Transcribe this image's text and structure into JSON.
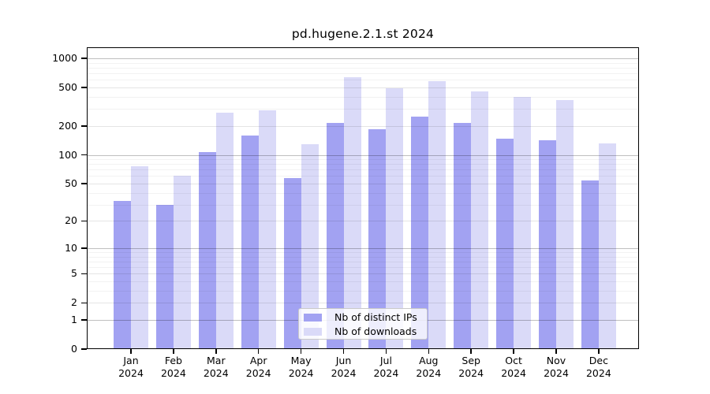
{
  "title": "pd.hugene.2.1.st 2024",
  "colors": {
    "bar_distinct_ips": "#a2a2f2",
    "bar_downloads": "#dadaf8",
    "grid_power10": "rgba(0,0,0,0.25)",
    "grid_labeled": "rgba(0,0,0,0.10)",
    "grid_minor": "rgba(0,0,0,0.05)",
    "axis": "#000000"
  },
  "legend": {
    "items": [
      {
        "label": "Nb of distinct IPs",
        "color": "#a2a2f2"
      },
      {
        "label": "Nb of downloads",
        "color": "#dadaf8"
      }
    ]
  },
  "axes": {
    "y_tick_labels": [
      "0",
      "1",
      "2",
      "5",
      "10",
      "20",
      "50",
      "100",
      "200",
      "500",
      "1000"
    ],
    "x_year": "2024"
  },
  "chart_data": {
    "type": "bar",
    "title": "pd.hugene.2.1.st 2024",
    "categories": [
      "Jan",
      "Feb",
      "Mar",
      "Apr",
      "May",
      "Jun",
      "Jul",
      "Aug",
      "Sep",
      "Oct",
      "Nov",
      "Dec"
    ],
    "year": "2024",
    "series": [
      {
        "name": "Nb of distinct IPs",
        "color": "#a2a2f2",
        "values": [
          33,
          30,
          106,
          159,
          57,
          215,
          185,
          249,
          214,
          146,
          143,
          54
        ]
      },
      {
        "name": "Nb of downloads",
        "color": "#dadaf8",
        "values": [
          76,
          60,
          274,
          290,
          130,
          637,
          492,
          582,
          456,
          400,
          370,
          131
        ]
      }
    ],
    "xlabel": "",
    "ylabel": "",
    "y_scale": "log2(1+x)",
    "y_ticks": [
      0,
      1,
      2,
      5,
      10,
      20,
      50,
      100,
      200,
      500,
      1000
    ],
    "ylim": [
      0,
      1300
    ],
    "grid": "on",
    "grid_over_bars": true,
    "legend_position": "bottom-center-inside"
  }
}
